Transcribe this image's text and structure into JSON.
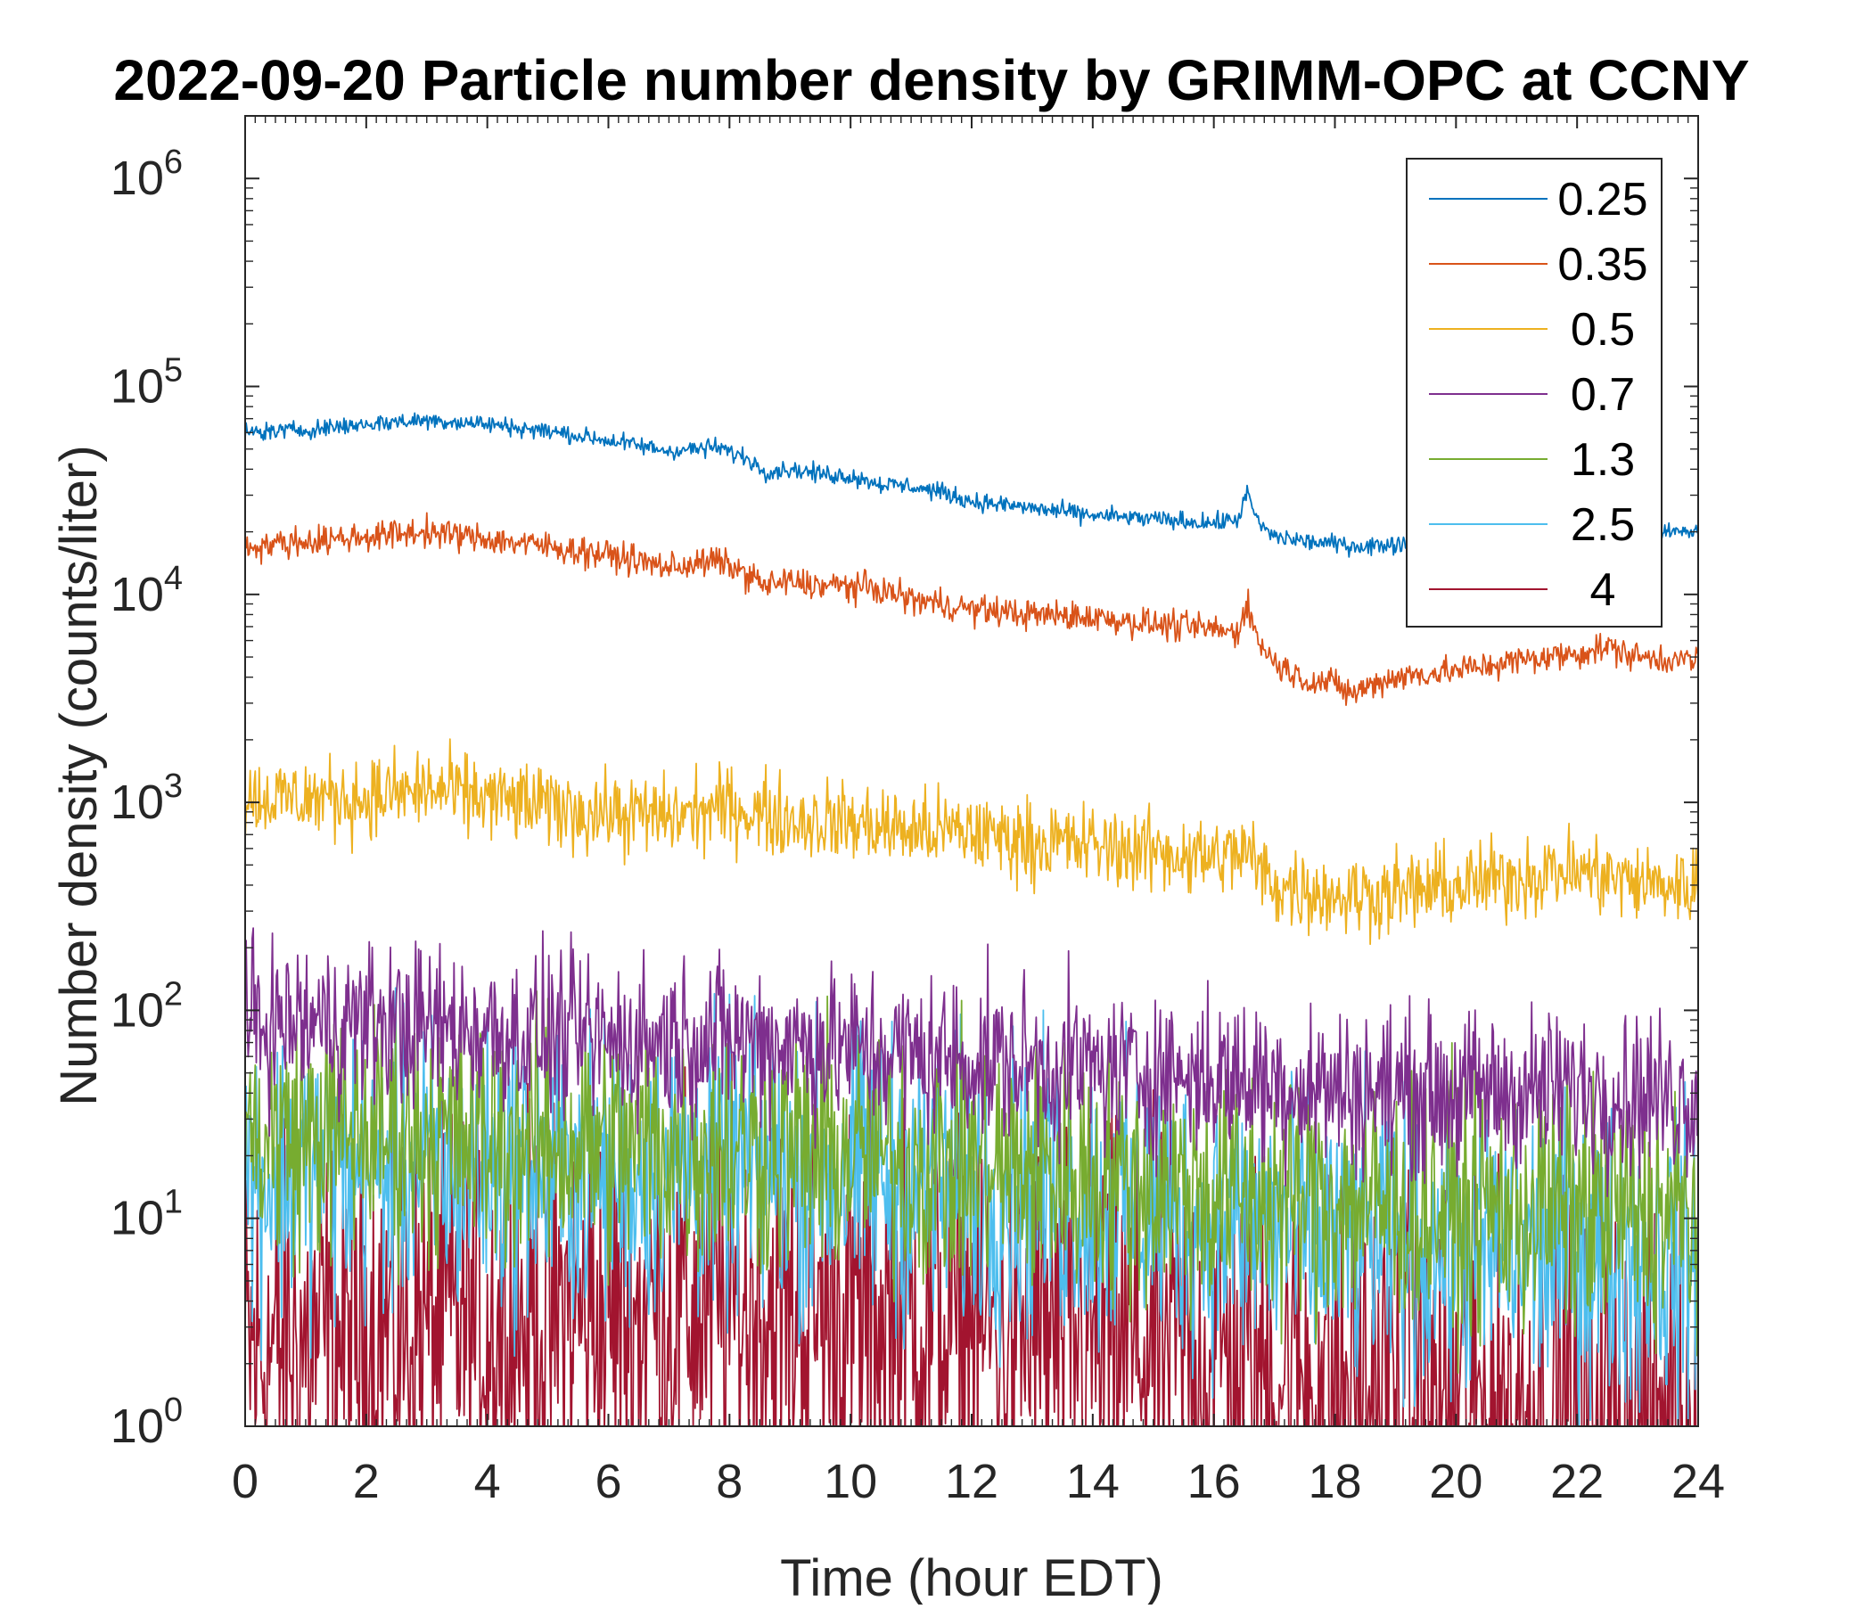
{
  "chart_data": {
    "type": "line",
    "title": "2022-09-20 Particle number density by GRIMM-OPC at CCNY",
    "xlabel": "Time (hour EDT)",
    "ylabel": "Number density (counts/liter)",
    "xscale": "linear",
    "yscale": "log",
    "xlim": [
      0,
      24
    ],
    "ylim": [
      1,
      2000000
    ],
    "xticks": [
      0,
      2,
      4,
      6,
      8,
      10,
      12,
      14,
      16,
      18,
      20,
      22,
      24
    ],
    "xtick_labels": [
      "0",
      "2",
      "4",
      "6",
      "8",
      "10",
      "12",
      "14",
      "16",
      "18",
      "20",
      "22",
      "24"
    ],
    "yticks": [
      1,
      10,
      100,
      1000,
      10000,
      100000,
      1000000
    ],
    "ytick_base": [
      "10",
      "10",
      "10",
      "10",
      "10",
      "10",
      "10"
    ],
    "ytick_exp": [
      "0",
      "1",
      "2",
      "3",
      "4",
      "5",
      "6"
    ],
    "grid": false,
    "legend_position": "top-right",
    "series": [
      {
        "name": "0.25",
        "color": "#0072BD",
        "noise": 0.012,
        "x": [
          0,
          1,
          2,
          3,
          4,
          5,
          6,
          7,
          7.8,
          8.3,
          8.6,
          9,
          9.5,
          10,
          10.5,
          11,
          11.5,
          12,
          12.5,
          13,
          14,
          15,
          16,
          16.4,
          16.55,
          16.65,
          16.8,
          17,
          17.5,
          18,
          18.5,
          19,
          20,
          21,
          22,
          23,
          24
        ],
        "values": [
          60000,
          62000,
          66000,
          69000,
          66000,
          61000,
          55000,
          49000,
          51000,
          45000,
          39000,
          40000,
          38000,
          37000,
          34000,
          33000,
          31000,
          28000,
          27000,
          26000,
          24000,
          23000,
          22000,
          23000,
          31000,
          25000,
          21000,
          19000,
          18000,
          17500,
          17000,
          17500,
          18000,
          18500,
          19000,
          19500,
          20000
        ]
      },
      {
        "name": "0.35",
        "color": "#D95319",
        "noise": 0.02,
        "x": [
          0,
          1,
          2,
          3,
          4,
          5,
          6,
          7,
          7.8,
          8.3,
          8.6,
          9,
          9.5,
          10,
          10.5,
          11,
          12,
          13,
          14,
          15,
          16,
          16.4,
          16.55,
          16.7,
          17,
          17.5,
          18,
          18.3,
          18.6,
          19,
          20,
          21,
          22,
          22.5,
          23,
          24
        ],
        "values": [
          17000,
          18000,
          19000,
          20000,
          18500,
          17000,
          15500,
          13500,
          14500,
          12500,
          11000,
          11500,
          11000,
          11000,
          10500,
          9500,
          8500,
          8000,
          7800,
          7200,
          6800,
          6500,
          9500,
          6200,
          4700,
          3900,
          3700,
          3300,
          3700,
          4000,
          4300,
          4800,
          5200,
          5600,
          5000,
          4800
        ]
      },
      {
        "name": "0.5",
        "color": "#EDB120",
        "noise": 0.055,
        "x": [
          0,
          1,
          2,
          3,
          4,
          5,
          6,
          7,
          8,
          9,
          10,
          11,
          12,
          13,
          14,
          15,
          16,
          16.5,
          17,
          17.5,
          18,
          18.5,
          19,
          20,
          21,
          21.5,
          22,
          22.5,
          23,
          24
        ],
        "values": [
          1050,
          1050,
          1050,
          1150,
          1050,
          950,
          880,
          850,
          950,
          830,
          800,
          730,
          720,
          650,
          620,
          580,
          540,
          580,
          400,
          380,
          360,
          360,
          370,
          390,
          440,
          460,
          470,
          440,
          410,
          390
        ]
      },
      {
        "name": "0.7",
        "color": "#7E2F8E",
        "noise": 0.11,
        "x": [
          0,
          2,
          4,
          6,
          8,
          10,
          12,
          14,
          16,
          18,
          20,
          22,
          24
        ],
        "values": [
          85,
          88,
          80,
          72,
          75,
          65,
          58,
          52,
          48,
          42,
          40,
          42,
          38
        ]
      },
      {
        "name": "1.3",
        "color": "#77AC30",
        "noise": 0.17,
        "x": [
          0,
          2,
          4,
          6,
          8,
          10,
          12,
          14,
          16,
          18,
          20,
          22,
          24
        ],
        "values": [
          24,
          26,
          24,
          22,
          22,
          20,
          18,
          16,
          13,
          12,
          11,
          11,
          10
        ]
      },
      {
        "name": "2.5",
        "color": "#4DBEEE",
        "noise": 0.2,
        "x": [
          0,
          2,
          4,
          6,
          8,
          10,
          12,
          14,
          16,
          18,
          20,
          22,
          24
        ],
        "values": [
          16,
          17,
          17,
          16,
          17,
          16,
          14,
          12,
          10,
          8,
          7,
          7,
          6
        ]
      },
      {
        "name": "4",
        "color": "#A2142F",
        "noise": 0.28,
        "x": [
          0,
          2,
          4,
          6,
          8,
          10,
          12,
          14,
          16,
          18,
          20,
          22,
          24
        ],
        "values": [
          2.2,
          2.8,
          3.2,
          3.5,
          3.8,
          3.5,
          3,
          2.6,
          2.2,
          1.6,
          1.3,
          1.3,
          1.2
        ]
      }
    ]
  }
}
